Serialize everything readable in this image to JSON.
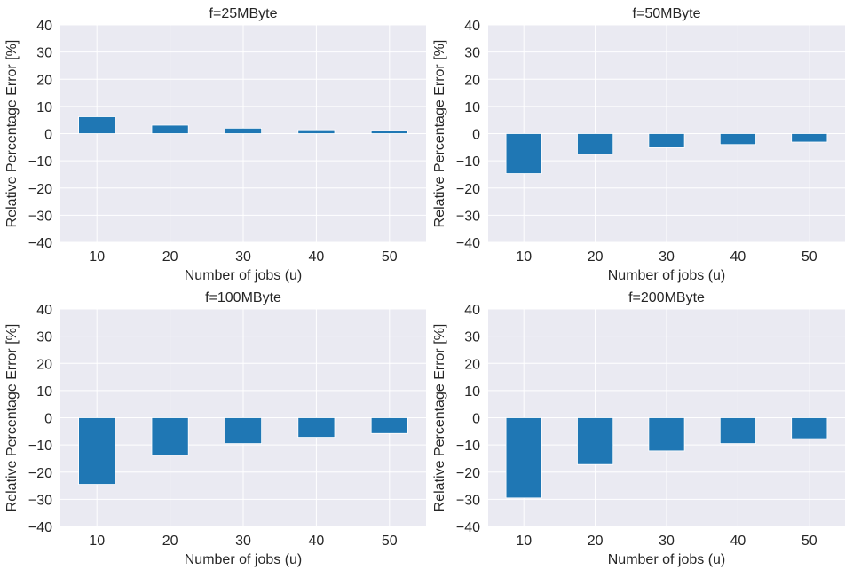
{
  "figure": {
    "background": "#ffffff",
    "plot_background": "#EAEAF2",
    "bar_color": "#1F77B4",
    "grid_color": "#ffffff"
  },
  "chart_data": [
    {
      "type": "bar",
      "title": "f=25MByte",
      "xlabel": "Number of jobs (u)",
      "ylabel": "Relative Percentage Error [%]",
      "categories": [
        "10",
        "20",
        "30",
        "40",
        "50"
      ],
      "values": [
        6.2,
        3.1,
        2.0,
        1.4,
        1.1
      ],
      "ylim": [
        -40,
        40
      ],
      "yticks": [
        "−40",
        "−30",
        "−20",
        "−10",
        "0",
        "10",
        "20",
        "30",
        "40"
      ],
      "grid": true
    },
    {
      "type": "bar",
      "title": "f=50MByte",
      "xlabel": "Number of jobs (u)",
      "ylabel": "Relative Percentage Error [%]",
      "categories": [
        "10",
        "20",
        "30",
        "40",
        "50"
      ],
      "values": [
        -14.7,
        -7.6,
        -5.2,
        -4.0,
        -3.1
      ],
      "ylim": [
        -40,
        40
      ],
      "yticks": [
        "−40",
        "−30",
        "−20",
        "−10",
        "0",
        "10",
        "20",
        "30",
        "40"
      ],
      "grid": true
    },
    {
      "type": "bar",
      "title": "f=100MByte",
      "xlabel": "Number of jobs (u)",
      "ylabel": "Relative Percentage Error [%]",
      "categories": [
        "10",
        "20",
        "30",
        "40",
        "50"
      ],
      "values": [
        -24.5,
        -13.8,
        -9.5,
        -7.2,
        -5.8
      ],
      "ylim": [
        -40,
        40
      ],
      "yticks": [
        "−40",
        "−30",
        "−20",
        "−10",
        "0",
        "10",
        "20",
        "30",
        "40"
      ],
      "grid": true
    },
    {
      "type": "bar",
      "title": "f=200MByte",
      "xlabel": "Number of jobs (u)",
      "ylabel": "Relative Percentage Error [%]",
      "categories": [
        "10",
        "20",
        "30",
        "40",
        "50"
      ],
      "values": [
        -29.5,
        -17.2,
        -12.2,
        -9.5,
        -7.7
      ],
      "ylim": [
        -40,
        40
      ],
      "yticks": [
        "−40",
        "−30",
        "−20",
        "−10",
        "0",
        "10",
        "20",
        "30",
        "40"
      ],
      "grid": true
    }
  ]
}
